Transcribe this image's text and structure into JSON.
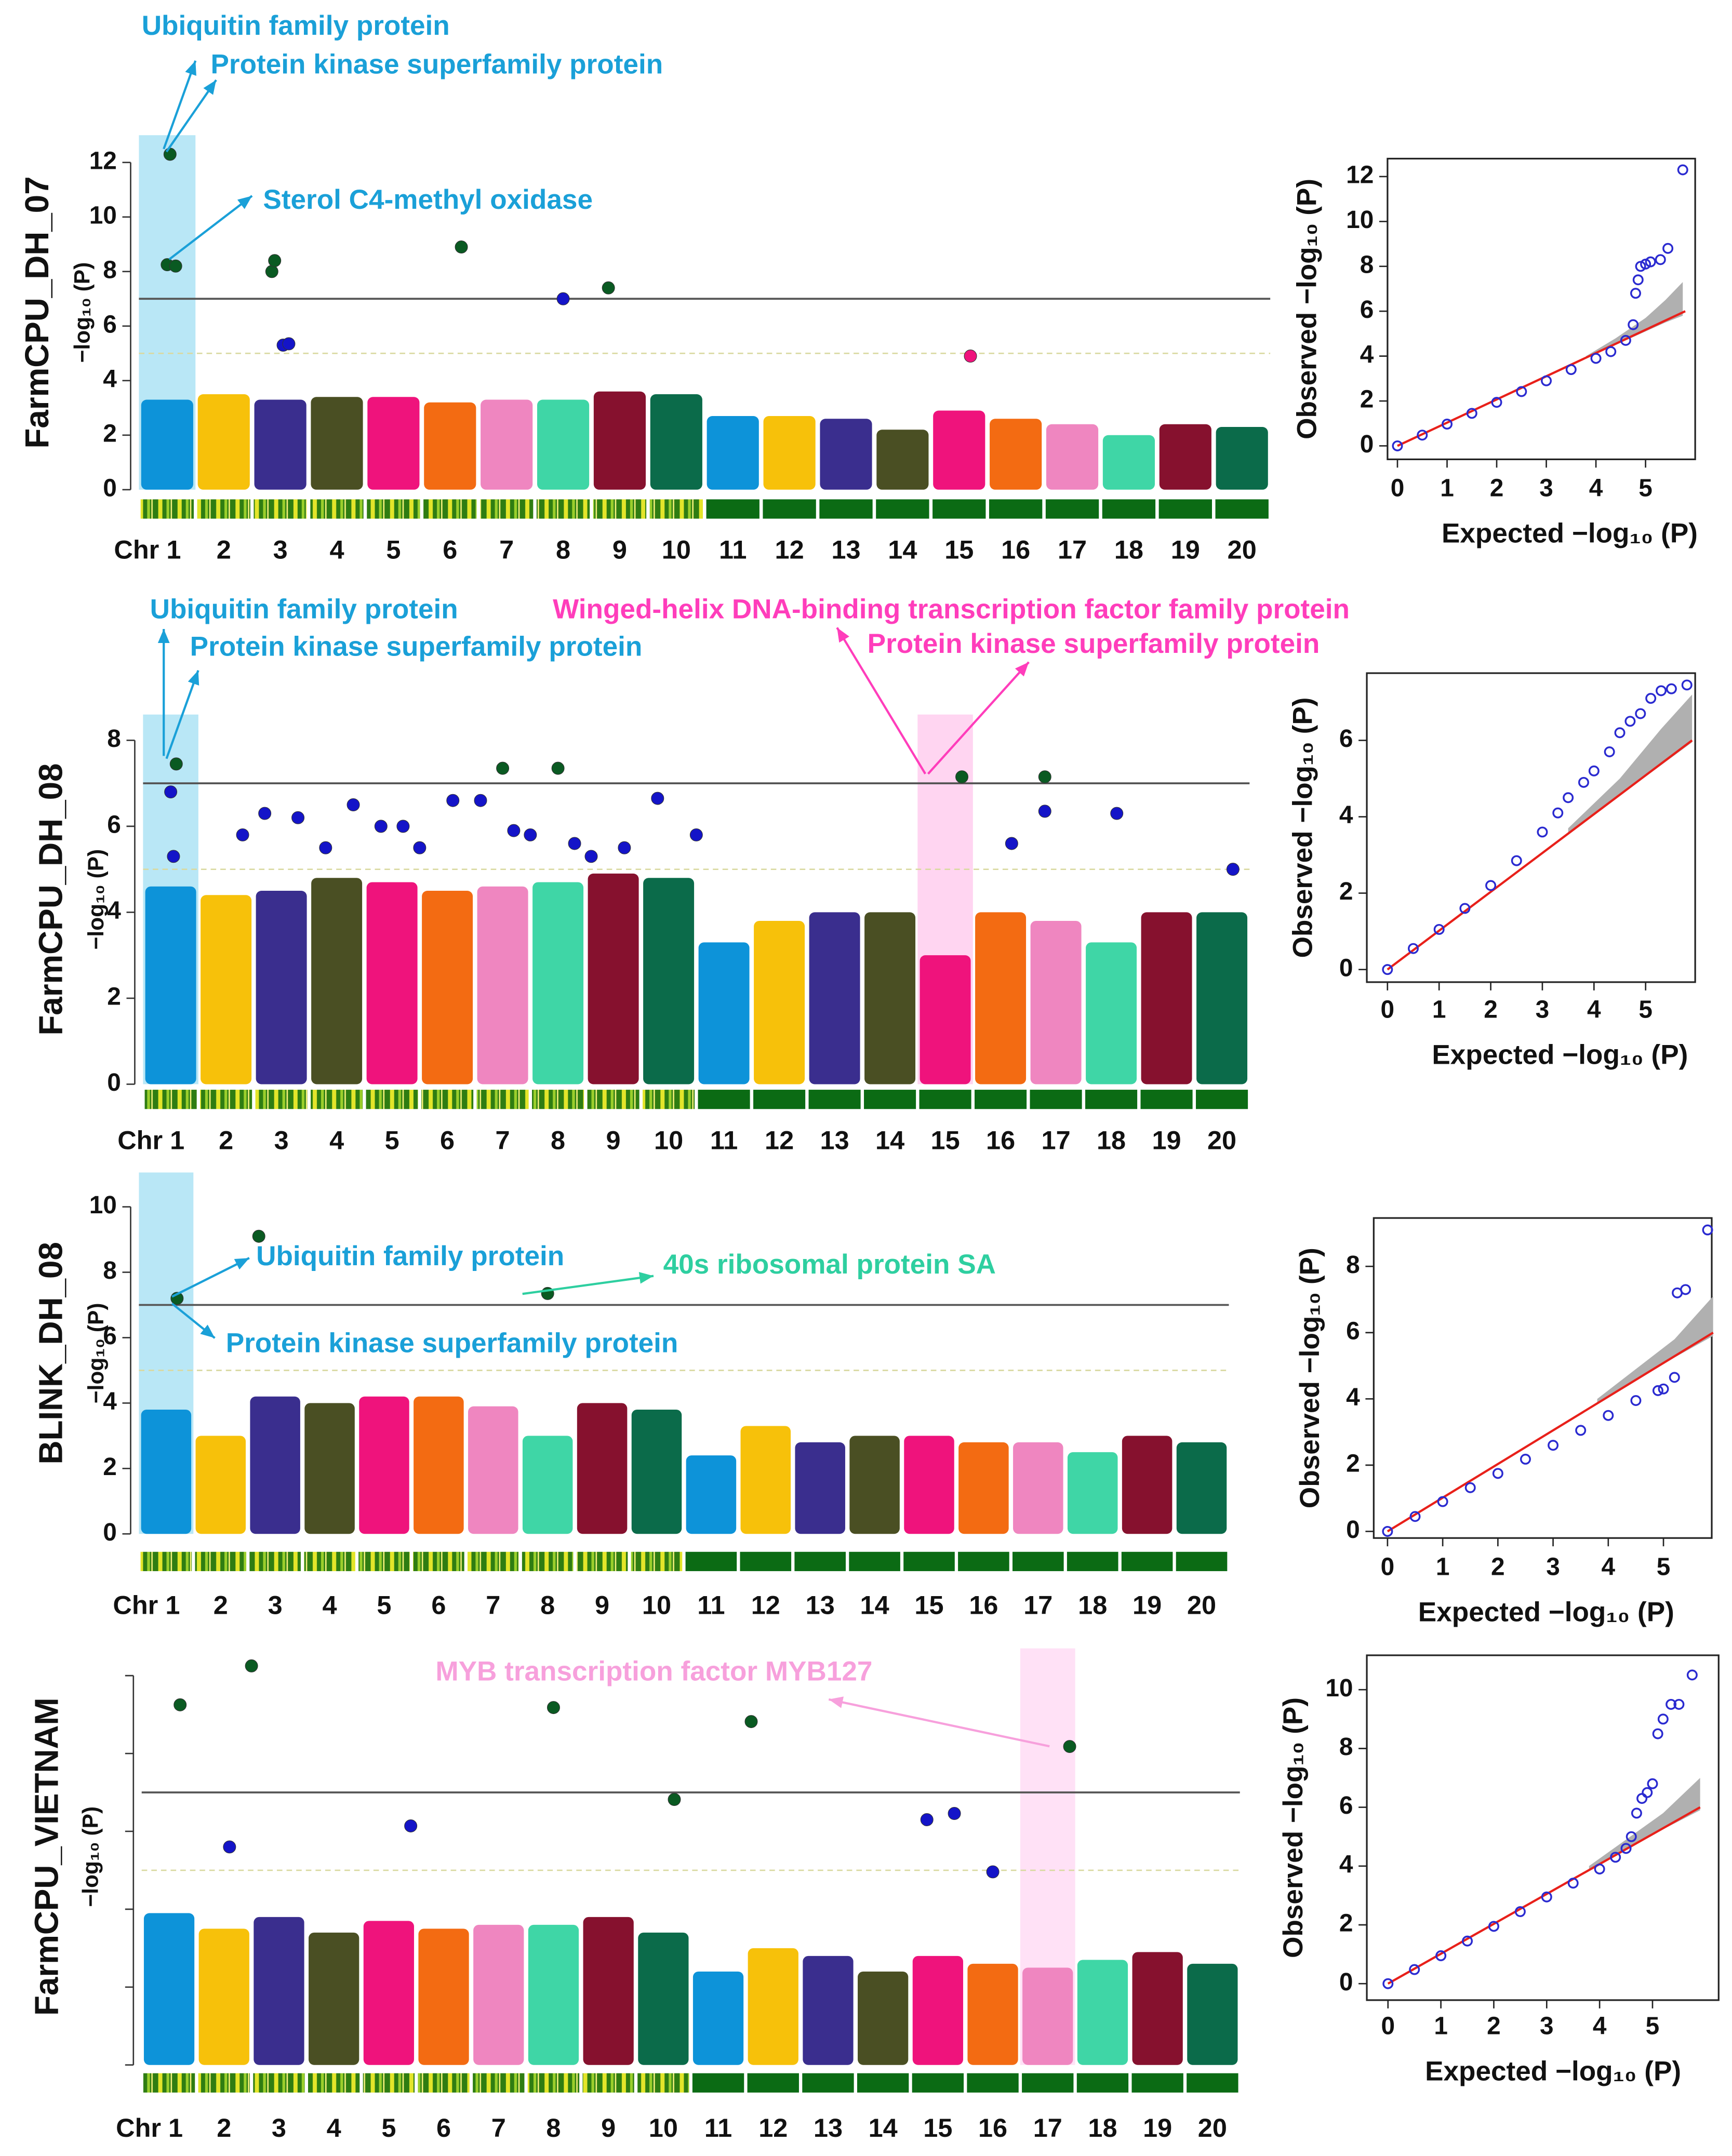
{
  "chart_data": [
    {
      "type": "manhattan",
      "trait": "FarmCPU_DH_07",
      "ylabel": "−log₁₀ (P)",
      "categories": [
        "Chr 1",
        "2",
        "3",
        "4",
        "5",
        "6",
        "7",
        "8",
        "9",
        "10",
        "11",
        "12",
        "13",
        "14",
        "15",
        "16",
        "17",
        "18",
        "19",
        "20"
      ],
      "colors": [
        "#0d93d9",
        "#f7c10a",
        "#3a2e8e",
        "#4a4f23",
        "#ef137c",
        "#f36b12",
        "#ef86c0",
        "#3fd6a6",
        "#86112e",
        "#0b6b4a",
        "#0d93d9",
        "#f7c10a",
        "#3a2e8e",
        "#4a4f23",
        "#ef137c",
        "#f36b12",
        "#ef86c0",
        "#3fd6a6",
        "#86112e",
        "#0b6b4a"
      ],
      "xlim": [
        0.5,
        20.5
      ],
      "ylim": [
        0,
        13
      ],
      "yticks": [
        0,
        2,
        4,
        6,
        8,
        10,
        12
      ],
      "thresholds": [
        7,
        5
      ],
      "chr_peaks": [
        3.3,
        3.5,
        3.3,
        3.4,
        3.4,
        3.2,
        3.3,
        3.3,
        3.6,
        3.5,
        2.7,
        2.7,
        2.6,
        2.2,
        2.9,
        2.6,
        2.4,
        2.0,
        2.4,
        2.3
      ],
      "points": {
        "x": [
          1.05,
          1.0,
          1.15,
          2.85,
          2.9,
          6.2,
          8.8,
          8.0,
          3.05,
          3.15,
          15.2
        ],
        "y": [
          12.3,
          8.25,
          8.2,
          8.0,
          8.4,
          8.9,
          7.4,
          7.0,
          5.3,
          5.35,
          4.9
        ],
        "colors": [
          "#0a5a22",
          "#0a5a22",
          "#0a5a22",
          "#0a5a22",
          "#0a5a22",
          "#0a5a22",
          "#0a5a22",
          "#1414c8",
          "#1414c8",
          "#1414c8",
          "#ef137c"
        ]
      },
      "highlights": [
        {
          "chr": 1,
          "color": "#7fd3ee"
        }
      ],
      "annotations": [
        {
          "text": "Ubiquitin family protein",
          "color": "#1aa0d8"
        },
        {
          "text": "Protein kinase superfamily protein",
          "color": "#1aa0d8"
        },
        {
          "text": "Sterol C4-methyl oxidase",
          "color": "#1aa0d8"
        }
      ]
    },
    {
      "type": "qq",
      "xlabel": "Expected −log₁₀ (P)",
      "ylabel": "Observed −log₁₀ (P)",
      "xlim": [
        -0.2,
        6
      ],
      "ylim": [
        -0.6,
        12.8
      ],
      "xticks": [
        0,
        1,
        2,
        3,
        4,
        5
      ],
      "yticks": [
        0,
        2,
        4,
        6,
        8,
        10,
        12
      ],
      "x": [
        0,
        0.5,
        1,
        1.5,
        2,
        2.5,
        3,
        3.5,
        4,
        4.3,
        4.6,
        4.75,
        4.8,
        4.85,
        4.9,
        5.0,
        5.1,
        5.3,
        5.45,
        5.75
      ],
      "y": [
        0,
        0.48,
        0.97,
        1.45,
        1.94,
        2.42,
        2.9,
        3.4,
        3.9,
        4.2,
        4.7,
        5.4,
        6.8,
        7.4,
        8.0,
        8.1,
        8.2,
        8.3,
        8.8,
        12.3
      ],
      "point_color": "#2a2ad0",
      "reference": {
        "x": [
          0,
          5.8
        ],
        "y": [
          0,
          6
        ],
        "color": "#e8201a"
      },
      "band": {
        "x": [
          3.8,
          4.4,
          5,
          5.4,
          5.75
        ],
        "lower": [
          3.9,
          4.5,
          5.1,
          5.5,
          5.8
        ],
        "upper": [
          4.0,
          4.8,
          5.7,
          6.5,
          7.3
        ],
        "color": "#b0b0b0"
      }
    },
    {
      "type": "manhattan",
      "trait": "FarmCPU_DH_08",
      "ylabel": "−log₁₀ (P)",
      "categories": [
        "Chr 1",
        "2",
        "3",
        "4",
        "5",
        "6",
        "7",
        "8",
        "9",
        "10",
        "11",
        "12",
        "13",
        "14",
        "15",
        "16",
        "17",
        "18",
        "19",
        "20"
      ],
      "colors": [
        "#0d93d9",
        "#f7c10a",
        "#3a2e8e",
        "#4a4f23",
        "#ef137c",
        "#f36b12",
        "#ef86c0",
        "#3fd6a6",
        "#86112e",
        "#0b6b4a",
        "#0d93d9",
        "#f7c10a",
        "#3a2e8e",
        "#4a4f23",
        "#ef137c",
        "#f36b12",
        "#ef86c0",
        "#3fd6a6",
        "#86112e",
        "#0b6b4a"
      ],
      "xlim": [
        0.5,
        20.5
      ],
      "ylim": [
        0,
        8.6
      ],
      "yticks": [
        0,
        2,
        4,
        6,
        8
      ],
      "thresholds": [
        7,
        5
      ],
      "chr_peaks": [
        4.6,
        4.4,
        4.5,
        4.8,
        4.7,
        4.5,
        4.6,
        4.7,
        4.9,
        4.8,
        3.3,
        3.8,
        4.0,
        4.0,
        3.0,
        4.0,
        3.8,
        3.3,
        4.0,
        4.0
      ],
      "points": {
        "x": [
          1.1,
          7.0,
          8.0,
          15.3,
          16.8,
          1.0,
          2.3,
          2.7,
          3.3,
          4.3,
          5.2,
          6.1,
          6.6,
          7.5,
          8.3,
          9.8,
          10.5,
          16.2,
          16.8,
          18.1,
          20.2,
          1.05,
          3.8,
          5.5,
          7.2,
          8.6,
          9.2,
          4.8
        ],
        "y": [
          7.45,
          7.35,
          7.35,
          7.15,
          7.15,
          6.8,
          5.8,
          6.3,
          6.2,
          6.5,
          6.0,
          6.6,
          6.6,
          5.8,
          5.6,
          6.65,
          5.8,
          5.6,
          6.35,
          6.3,
          5.0,
          5.3,
          5.5,
          5.5,
          5.9,
          5.3,
          5.5,
          6.0
        ],
        "colors": [
          "#0a5a22",
          "#0a5a22",
          "#0a5a22",
          "#0a5a22",
          "#0a5a22",
          "#1414c8",
          "#1414c8",
          "#1414c8",
          "#1414c8",
          "#1414c8",
          "#1414c8",
          "#1414c8",
          "#1414c8",
          "#1414c8",
          "#1414c8",
          "#1414c8",
          "#1414c8",
          "#1414c8",
          "#1414c8",
          "#1414c8",
          "#1414c8",
          "#1414c8",
          "#1414c8",
          "#1414c8",
          "#1414c8",
          "#1414c8",
          "#1414c8",
          "#1414c8"
        ]
      },
      "highlights": [
        {
          "chr": 1,
          "color": "#7fd3ee"
        },
        {
          "chr": 15,
          "color": "#ffb3e6"
        }
      ],
      "annotations": [
        {
          "text": "Ubiquitin family protein",
          "color": "#1aa0d8"
        },
        {
          "text": "Protein kinase superfamily protein",
          "color": "#1aa0d8"
        },
        {
          "text": "Winged-helix DNA-binding transcription factor family protein",
          "color": "#ff3dbb"
        },
        {
          "text": "Protein kinase superfamily protein",
          "color": "#ff3dbb"
        }
      ]
    },
    {
      "type": "qq",
      "xlabel": "Expected −log₁₀ (P)",
      "ylabel": "Observed −log₁₀ (P)",
      "xlim": [
        -0.4,
        5.96
      ],
      "ylim": [
        -0.33,
        7.76
      ],
      "xticks": [
        0,
        1,
        2,
        3,
        4,
        5
      ],
      "yticks": [
        0,
        2,
        4,
        6
      ],
      "x": [
        0,
        0.5,
        1,
        1.5,
        2,
        2.5,
        3,
        3.3,
        3.5,
        3.8,
        4,
        4.3,
        4.5,
        4.7,
        4.9,
        5.1,
        5.3,
        5.5,
        5.8
      ],
      "y": [
        0,
        0.55,
        1.05,
        1.6,
        2.2,
        2.85,
        3.6,
        4.1,
        4.5,
        4.9,
        5.2,
        5.7,
        6.2,
        6.5,
        6.7,
        7.1,
        7.3,
        7.35,
        7.45
      ],
      "point_color": "#2a2ad0",
      "reference": {
        "x": [
          0,
          5.9
        ],
        "y": [
          0,
          6
        ],
        "color": "#e8201a"
      },
      "band": {
        "x": [
          3.5,
          4.5,
          5.3,
          5.9
        ],
        "lower": [
          3.55,
          4.55,
          5.35,
          5.95
        ],
        "upper": [
          3.7,
          5.0,
          6.3,
          7.2
        ],
        "color": "#b0b0b0"
      }
    },
    {
      "type": "manhattan",
      "trait": "BLINK_DH_08",
      "ylabel": "−log₁₀ (P)",
      "categories": [
        "Chr 1",
        "2",
        "3",
        "4",
        "5",
        "6",
        "7",
        "8",
        "9",
        "10",
        "11",
        "12",
        "13",
        "14",
        "15",
        "16",
        "17",
        "18",
        "19",
        "20"
      ],
      "colors": [
        "#0d93d9",
        "#f7c10a",
        "#3a2e8e",
        "#4a4f23",
        "#ef137c",
        "#f36b12",
        "#ef86c0",
        "#3fd6a6",
        "#86112e",
        "#0b6b4a",
        "#0d93d9",
        "#f7c10a",
        "#3a2e8e",
        "#4a4f23",
        "#ef137c",
        "#f36b12",
        "#ef86c0",
        "#3fd6a6",
        "#86112e",
        "#0b6b4a"
      ],
      "xlim": [
        0.5,
        20.5
      ],
      "ylim": [
        0,
        11.05
      ],
      "yticks": [
        0,
        2,
        4,
        6,
        8,
        10
      ],
      "thresholds": [
        7,
        5
      ],
      "chr_peaks": [
        3.8,
        3.0,
        4.2,
        4.0,
        4.2,
        4.2,
        3.9,
        3.0,
        4.0,
        3.8,
        2.4,
        3.3,
        2.8,
        3.0,
        3.0,
        2.8,
        2.8,
        2.5,
        3.0,
        2.8
      ],
      "points": {
        "x": [
          1.2,
          2.7,
          8.0
        ],
        "y": [
          7.2,
          9.1,
          7.35
        ],
        "colors": [
          "#0a5a22",
          "#0a5a22",
          "#0a5a22"
        ]
      },
      "highlights": [
        {
          "chr": 1,
          "color": "#7fd3ee"
        }
      ],
      "annotations": [
        {
          "text": "Ubiquitin family protein",
          "color": "#1aa0d8"
        },
        {
          "text": "40s ribosomal protein SA",
          "color": "#2ecfa0"
        },
        {
          "text": "Protein kinase superfamily protein",
          "color": "#1aa0d8"
        }
      ]
    },
    {
      "type": "qq",
      "xlabel": "Expected −log₁₀ (P)",
      "ylabel": "Observed −log₁₀ (P)",
      "xlim": [
        -0.25,
        5.875
      ],
      "ylim": [
        -0.2,
        9.46
      ],
      "xticks": [
        0,
        1,
        2,
        3,
        4,
        5
      ],
      "yticks": [
        0,
        2,
        4,
        6,
        8
      ],
      "x": [
        0,
        0.5,
        1,
        1.5,
        2,
        2.5,
        3,
        3.5,
        4,
        4.5,
        4.9,
        5.0,
        5.2,
        5.25,
        5.4,
        5.8
      ],
      "y": [
        0,
        0.45,
        0.9,
        1.32,
        1.75,
        2.18,
        2.6,
        3.05,
        3.5,
        3.95,
        4.25,
        4.3,
        4.65,
        7.2,
        7.3,
        9.1
      ],
      "point_color": "#2a2ad0",
      "reference": {
        "x": [
          0,
          5.9
        ],
        "y": [
          0,
          6
        ],
        "color": "#e8201a"
      },
      "band": {
        "x": [
          3.8,
          4.5,
          5.2,
          5.9
        ],
        "lower": [
          3.85,
          4.55,
          5.25,
          5.9
        ],
        "upper": [
          4.0,
          4.9,
          5.8,
          7.1
        ],
        "color": "#b0b0b0"
      }
    },
    {
      "type": "manhattan",
      "trait": "FarmCPU_VIETNAM",
      "ylabel": "−log₁₀ (P)",
      "categories": [
        "Chr 1",
        "2",
        "3",
        "4",
        "5",
        "6",
        "7",
        "8",
        "9",
        "10",
        "11",
        "12",
        "13",
        "14",
        "15",
        "16",
        "17",
        "18",
        "19",
        "20"
      ],
      "colors": [
        "#0d93d9",
        "#f7c10a",
        "#3a2e8e",
        "#4a4f23",
        "#ef137c",
        "#f36b12",
        "#ef86c0",
        "#3fd6a6",
        "#86112e",
        "#0b6b4a",
        "#0d93d9",
        "#f7c10a",
        "#3a2e8e",
        "#4a4f23",
        "#ef137c",
        "#f36b12",
        "#ef86c0",
        "#3fd6a6",
        "#86112e",
        "#0b6b4a"
      ],
      "xlim": [
        0.5,
        20.5
      ],
      "ylim": [
        0,
        10.7
      ],
      "yticks": [
        0,
        2,
        4,
        6,
        8,
        10
      ],
      "ytick_labels": false,
      "thresholds": [
        7,
        5
      ],
      "chr_peaks": [
        3.9,
        3.5,
        3.8,
        3.4,
        3.7,
        3.5,
        3.6,
        3.6,
        3.8,
        3.4,
        2.4,
        3.0,
        2.8,
        2.4,
        2.8,
        2.6,
        2.5,
        2.7,
        2.9,
        2.6
      ],
      "points": {
        "x": [
          1.2,
          2.5,
          8.0,
          11.6,
          17.4,
          10.2,
          2.1,
          5.4,
          14.8,
          15.3,
          16.0
        ],
        "y": [
          9.25,
          10.25,
          9.18,
          8.82,
          8.18,
          6.82,
          5.6,
          6.14,
          6.3,
          6.46,
          4.96
        ],
        "colors": [
          "#0a5a22",
          "#0a5a22",
          "#0a5a22",
          "#0a5a22",
          "#0a5a22",
          "#0a5a22",
          "#1414c8",
          "#1414c8",
          "#1414c8",
          "#1414c8",
          "#1414c8"
        ]
      },
      "highlights": [
        {
          "chr": 17,
          "color": "#ffc8ee"
        }
      ],
      "annotations": [
        {
          "text": "MYB transcription factor MYB127",
          "color": "#f7a0dc"
        }
      ]
    },
    {
      "type": "qq",
      "xlabel": "Expected −log₁₀ (P)",
      "ylabel": "Observed −log₁₀ (P)",
      "xlim": [
        -0.4,
        6.25
      ],
      "ylim": [
        -0.56,
        11.17
      ],
      "xticks": [
        0,
        1,
        2,
        3,
        4,
        5
      ],
      "yticks": [
        0,
        2,
        4,
        6,
        8,
        10
      ],
      "x": [
        0,
        0.5,
        1,
        1.5,
        2,
        2.5,
        3,
        3.5,
        4,
        4.3,
        4.5,
        4.6,
        4.7,
        4.8,
        4.9,
        5.0,
        5.1,
        5.2,
        5.35,
        5.5,
        5.75
      ],
      "y": [
        0,
        0.48,
        0.95,
        1.45,
        1.95,
        2.45,
        2.95,
        3.42,
        3.9,
        4.3,
        4.6,
        5.0,
        5.8,
        6.3,
        6.5,
        6.8,
        8.5,
        9.0,
        9.5,
        9.5,
        10.5
      ],
      "point_color": "#2a2ad0",
      "reference": {
        "x": [
          0,
          5.9
        ],
        "y": [
          0,
          6
        ],
        "color": "#e8201a"
      },
      "band": {
        "x": [
          3.8,
          4.5,
          5.2,
          5.9
        ],
        "lower": [
          3.85,
          4.55,
          5.25,
          5.9
        ],
        "upper": [
          4.0,
          4.9,
          5.8,
          7.0
        ],
        "color": "#b0b0b0"
      }
    }
  ]
}
